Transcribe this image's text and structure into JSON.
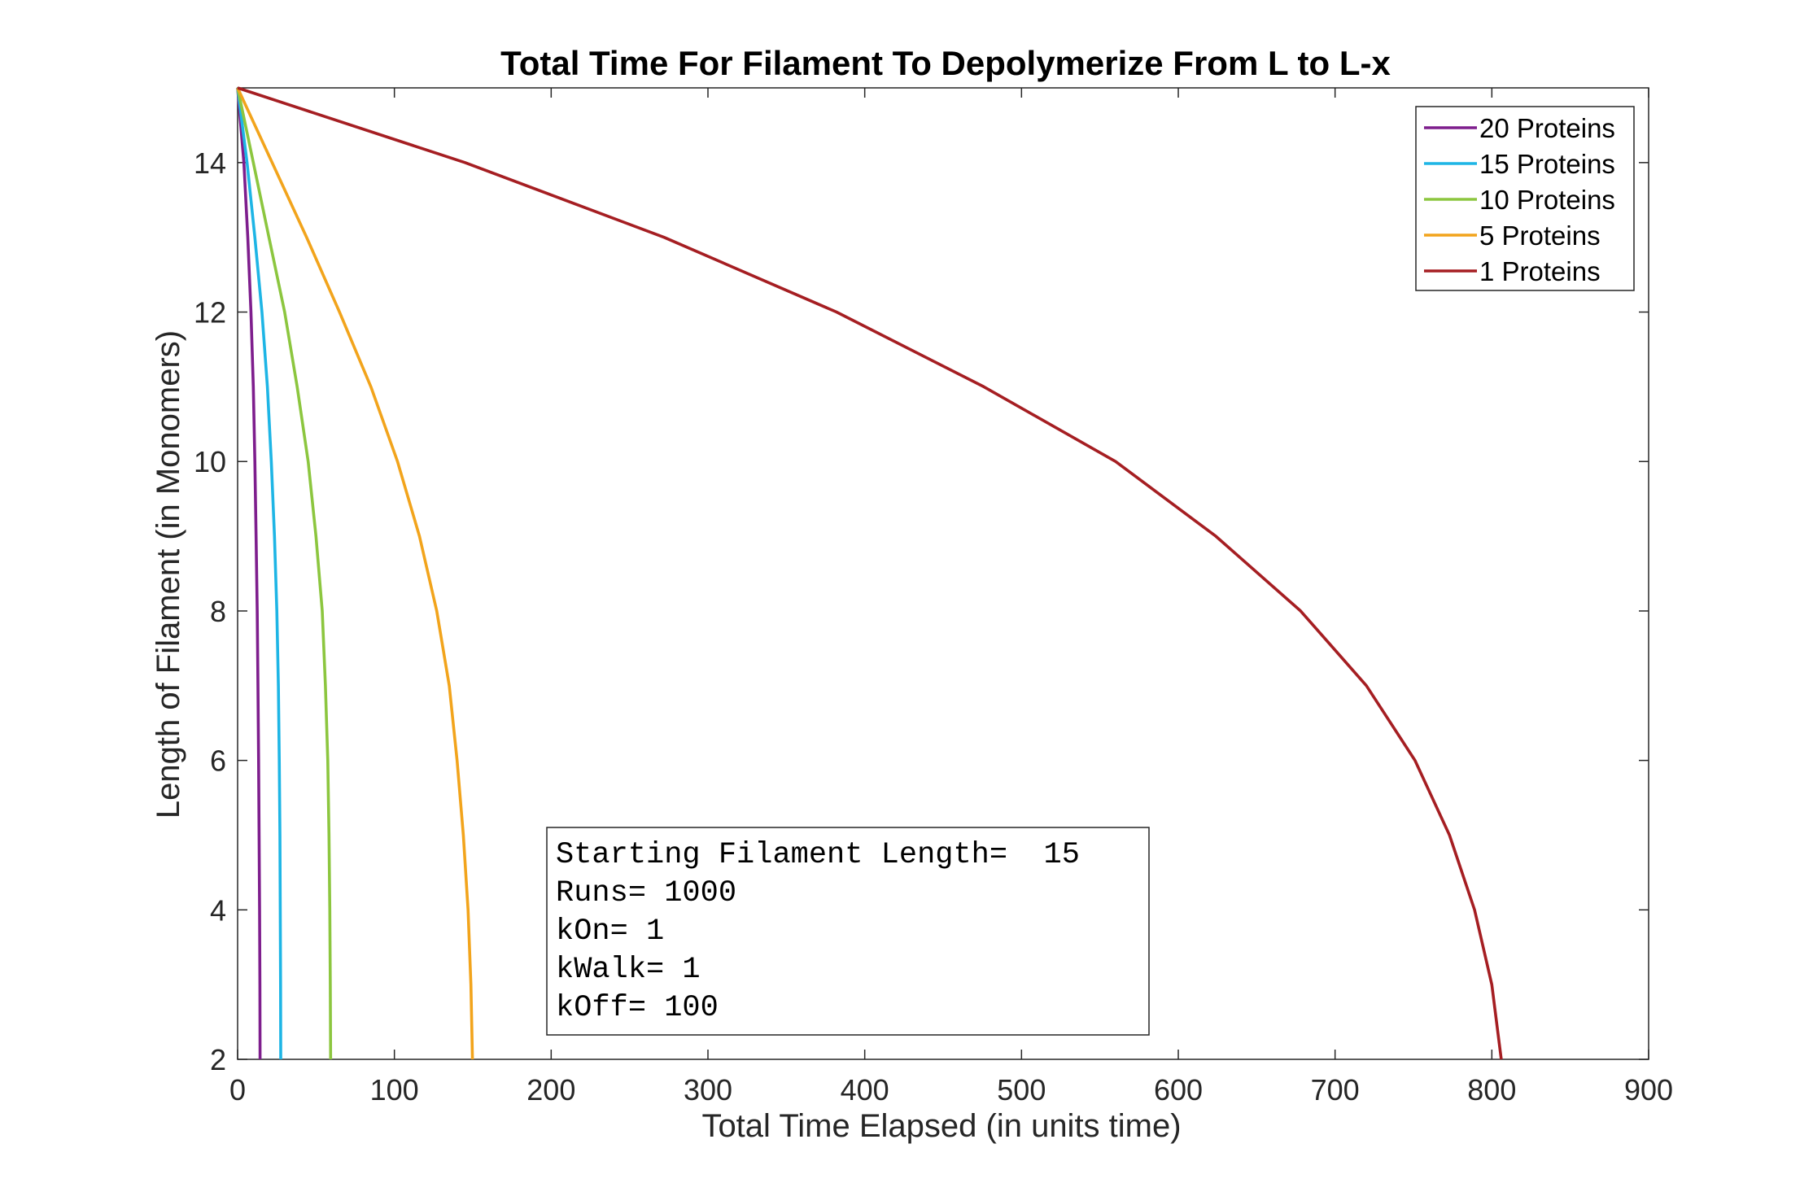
{
  "chart_data": {
    "type": "line",
    "title": "Total Time For Filament To Depolymerize From L to L-x",
    "xlabel": "Total Time Elapsed (in units time)",
    "ylabel": "Length of Filament (in Monomers)",
    "xlim": [
      0,
      900
    ],
    "ylim": [
      2,
      15
    ],
    "xticks": [
      0,
      100,
      200,
      300,
      400,
      500,
      600,
      700,
      800,
      900
    ],
    "yticks": [
      2,
      4,
      6,
      8,
      10,
      12,
      14
    ],
    "grid": false,
    "legend_position": "top-right",
    "series": [
      {
        "name": "20 Proteins",
        "color": "#7E1E8D",
        "x": [
          0,
          4,
          6.5,
          8.5,
          10,
          11,
          11.8,
          12.5,
          13,
          13.4,
          13.7,
          14,
          14.2,
          14.3
        ],
        "y": [
          15,
          14,
          13,
          12,
          11,
          10,
          9,
          8,
          7,
          6,
          5,
          4,
          3,
          2
        ]
      },
      {
        "name": "15 Proteins",
        "color": "#1EB5E5",
        "x": [
          0,
          6,
          11,
          15.5,
          19,
          21.5,
          23.5,
          25,
          26,
          26.6,
          27,
          27.2,
          27.4,
          27.5
        ],
        "y": [
          15,
          14,
          13,
          12,
          11,
          10,
          9,
          8,
          7,
          6,
          5,
          4,
          3,
          2
        ]
      },
      {
        "name": "10 Proteins",
        "color": "#8CC63F",
        "x": [
          0,
          10,
          20,
          30,
          38,
          45,
          50,
          54,
          56,
          57.5,
          58.3,
          58.8,
          59.1,
          59.3
        ],
        "y": [
          15,
          14,
          13,
          12,
          11,
          10,
          9,
          8,
          7,
          6,
          5,
          4,
          3,
          2
        ]
      },
      {
        "name": "5 Proteins",
        "color": "#F2A41C",
        "x": [
          0,
          22,
          44,
          65,
          85,
          102,
          116,
          127,
          135,
          140,
          144,
          147,
          148.8,
          149.8
        ],
        "y": [
          15,
          14,
          13,
          12,
          11,
          10,
          9,
          8,
          7,
          6,
          5,
          4,
          3,
          2
        ]
      },
      {
        "name": "1 Proteins",
        "color": "#A51E22",
        "x": [
          0,
          145,
          272,
          382,
          476,
          560,
          624,
          678,
          720,
          751,
          773,
          789,
          800,
          806
        ],
        "y": [
          15,
          14,
          13,
          12,
          11,
          10,
          9,
          8,
          7,
          6,
          5,
          4,
          3,
          2
        ]
      }
    ],
    "annotation": {
      "lines": [
        "Starting Filament Length=  15",
        "Runs= 1000",
        "kOn= 1",
        "kWalk= 1",
        "kOff= 100"
      ]
    }
  }
}
